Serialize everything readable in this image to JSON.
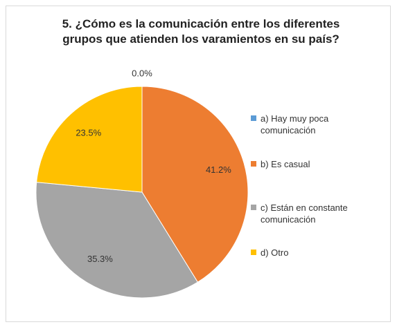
{
  "chart_data": {
    "type": "pie",
    "title": "5. ¿Cómo es la comunicación  entre los diferentes grupos que atienden los varamientos en su país?",
    "categories": [
      "a) Hay muy poca comunicación",
      "b) Es casual",
      "c) Están en constante comunicación",
      "d) Otro"
    ],
    "values": [
      0.0,
      41.2,
      35.3,
      23.5
    ],
    "value_labels": [
      "0.0%",
      "41.2%",
      "35.3%",
      "23.5%"
    ],
    "colors": [
      "#5b9bd5",
      "#ed7d31",
      "#a5a5a5",
      "#ffc000"
    ],
    "legend": "right"
  }
}
